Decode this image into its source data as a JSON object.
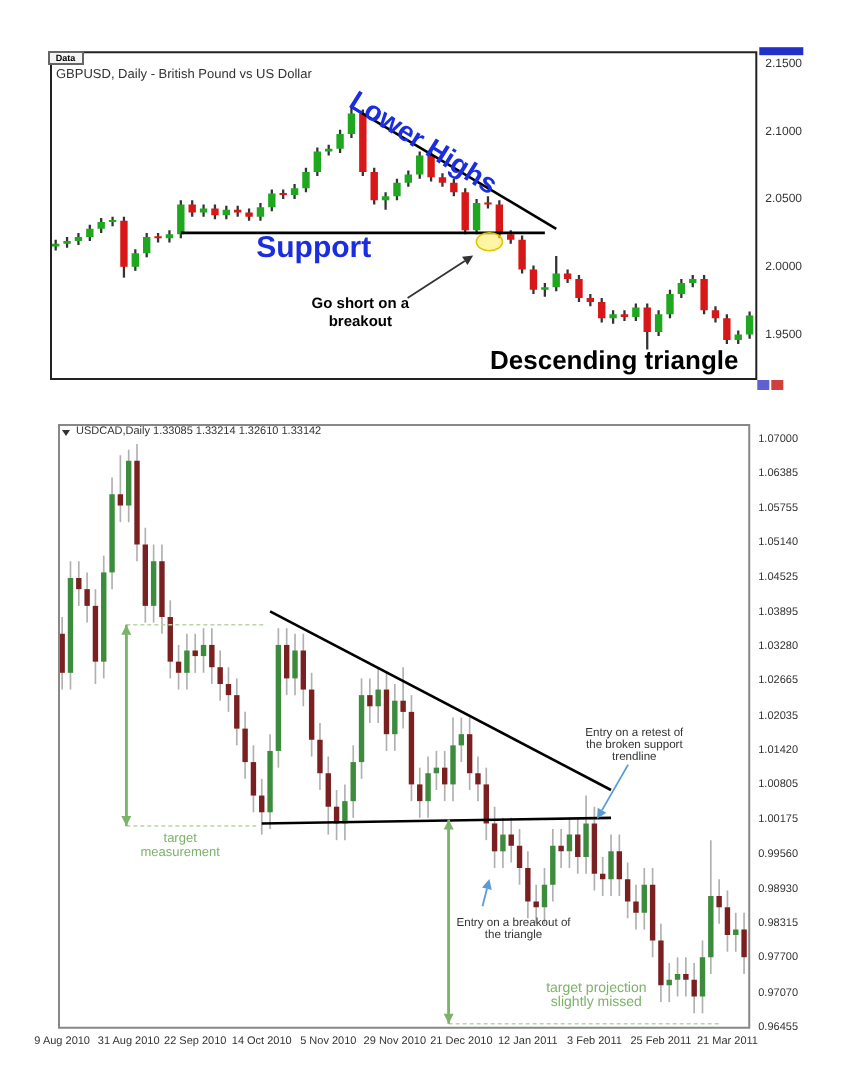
{
  "chart_data": [
    {
      "type": "candlestick",
      "title": "GBPUSD, Daily - British Pound vs US Dollar",
      "categories": [
        null,
        null,
        null,
        null,
        null,
        null,
        null,
        null,
        null,
        null,
        null,
        null,
        null,
        null,
        null,
        null,
        null,
        null,
        null,
        null,
        null,
        null,
        null,
        null,
        null,
        null,
        null,
        null,
        null,
        null,
        null,
        null,
        null,
        null,
        null,
        null,
        null,
        null,
        null,
        null,
        null,
        null,
        null,
        null,
        null,
        null,
        null,
        null,
        null,
        null,
        null,
        null,
        null,
        null,
        null,
        null,
        null,
        null,
        null,
        null,
        null,
        null
      ],
      "ohlc": [
        [
          2.015,
          2.02,
          2.012,
          2.017
        ],
        [
          2.017,
          2.022,
          2.014,
          2.019
        ],
        [
          2.019,
          2.025,
          2.016,
          2.022
        ],
        [
          2.022,
          2.031,
          2.019,
          2.028
        ],
        [
          2.028,
          2.036,
          2.025,
          2.033
        ],
        [
          2.033,
          2.037,
          2.03,
          2.034
        ],
        [
          2.034,
          2.037,
          1.992,
          2.0
        ],
        [
          2.0,
          2.013,
          1.997,
          2.01
        ],
        [
          2.01,
          2.025,
          2.007,
          2.022
        ],
        [
          2.022,
          2.025,
          2.018,
          2.021
        ],
        [
          2.021,
          2.027,
          2.018,
          2.024
        ],
        [
          2.024,
          2.049,
          2.021,
          2.046
        ],
        [
          2.046,
          2.049,
          2.037,
          2.04
        ],
        [
          2.04,
          2.046,
          2.037,
          2.043
        ],
        [
          2.043,
          2.046,
          2.035,
          2.038
        ],
        [
          2.038,
          2.045,
          2.035,
          2.042
        ],
        [
          2.042,
          2.045,
          2.037,
          2.04
        ],
        [
          2.04,
          2.043,
          2.034,
          2.037
        ],
        [
          2.037,
          2.047,
          2.034,
          2.044
        ],
        [
          2.044,
          2.057,
          2.041,
          2.054
        ],
        [
          2.054,
          2.057,
          2.05,
          2.053
        ],
        [
          2.053,
          2.061,
          2.05,
          2.058
        ],
        [
          2.058,
          2.073,
          2.055,
          2.07
        ],
        [
          2.07,
          2.088,
          2.067,
          2.085
        ],
        [
          2.085,
          2.09,
          2.082,
          2.087
        ],
        [
          2.087,
          2.101,
          2.084,
          2.098
        ],
        [
          2.098,
          2.118,
          2.095,
          2.113
        ],
        [
          2.113,
          2.116,
          2.067,
          2.07
        ],
        [
          2.07,
          2.073,
          2.046,
          2.049
        ],
        [
          2.049,
          2.055,
          2.042,
          2.052
        ],
        [
          2.052,
          2.065,
          2.049,
          2.062
        ],
        [
          2.062,
          2.071,
          2.059,
          2.068
        ],
        [
          2.068,
          2.085,
          2.065,
          2.082
        ],
        [
          2.082,
          2.085,
          2.063,
          2.066
        ],
        [
          2.066,
          2.069,
          2.059,
          2.062
        ],
        [
          2.062,
          2.065,
          2.052,
          2.055
        ],
        [
          2.055,
          2.058,
          2.024,
          2.027
        ],
        [
          2.027,
          2.05,
          2.024,
          2.047
        ],
        [
          2.047,
          2.052,
          2.043,
          2.046
        ],
        [
          2.046,
          2.049,
          2.021,
          2.024
        ],
        [
          2.024,
          2.027,
          2.017,
          2.02
        ],
        [
          2.02,
          2.023,
          1.995,
          1.998
        ],
        [
          1.998,
          2.001,
          1.98,
          1.983
        ],
        [
          1.983,
          1.988,
          1.978,
          1.985
        ],
        [
          1.985,
          2.008,
          1.982,
          1.995
        ],
        [
          1.995,
          1.998,
          1.988,
          1.991
        ],
        [
          1.991,
          1.994,
          1.974,
          1.977
        ],
        [
          1.977,
          1.98,
          1.971,
          1.974
        ],
        [
          1.974,
          1.977,
          1.959,
          1.962
        ],
        [
          1.962,
          1.968,
          1.958,
          1.965
        ],
        [
          1.965,
          1.968,
          1.96,
          1.963
        ],
        [
          1.963,
          1.973,
          1.96,
          1.97
        ],
        [
          1.97,
          1.973,
          1.939,
          1.952
        ],
        [
          1.952,
          1.968,
          1.949,
          1.965
        ],
        [
          1.965,
          1.983,
          1.962,
          1.98
        ],
        [
          1.98,
          1.991,
          1.977,
          1.988
        ],
        [
          1.988,
          1.994,
          1.985,
          1.991
        ],
        [
          1.991,
          1.994,
          1.965,
          1.968
        ],
        [
          1.968,
          1.971,
          1.959,
          1.962
        ],
        [
          1.962,
          1.965,
          1.943,
          1.946
        ],
        [
          1.946,
          1.953,
          1.943,
          1.95
        ],
        [
          1.95,
          1.967,
          1.947,
          1.964
        ]
      ],
      "series": [
        {
          "type": "line",
          "color": "#000000",
          "values": [
            null,
            null,
            null,
            null,
            null,
            null,
            null,
            null,
            null,
            null,
            null,
            null,
            null,
            null,
            null,
            null,
            null,
            null,
            null,
            null,
            null,
            null,
            null,
            null,
            null,
            null,
            2.118,
            null,
            null,
            null,
            null,
            null,
            null,
            null,
            null,
            null,
            null,
            null,
            null,
            null,
            null,
            null,
            null,
            null,
            2.028,
            null,
            null,
            null,
            null,
            null,
            null,
            null,
            null,
            null,
            null,
            null,
            null,
            null,
            null,
            null,
            null,
            null
          ]
        },
        {
          "type": "line",
          "color": "#000000",
          "values": [
            null,
            null,
            null,
            null,
            null,
            null,
            null,
            null,
            null,
            null,
            null,
            2.025,
            null,
            null,
            null,
            null,
            null,
            null,
            null,
            null,
            null,
            null,
            null,
            null,
            null,
            null,
            null,
            null,
            null,
            null,
            null,
            null,
            null,
            null,
            null,
            null,
            null,
            null,
            null,
            null,
            null,
            null,
            null,
            2.025,
            null,
            null,
            null,
            null,
            null,
            null,
            null,
            null,
            null,
            null,
            null,
            null,
            null,
            null,
            null,
            null,
            null,
            null
          ]
        }
      ],
      "ylim": [
        1.918,
        2.159
      ],
      "yticks": [
        {
          "value": 1.95,
          "label": "1.9500"
        },
        {
          "value": 2.0,
          "label": "2.0000"
        },
        {
          "value": 2.05,
          "label": "2.0500"
        },
        {
          "value": 2.1,
          "label": "2.1000"
        },
        {
          "value": 2.15,
          "label": "2.1500"
        }
      ],
      "tick_labels": "y",
      "annotations": [
        "Data",
        "Lower Highs",
        "Support",
        "Go short on a breakout",
        "Descending triangle"
      ]
    },
    {
      "type": "candlestick",
      "title": "USDCAD,Daily  1.33085 1.33214 1.32610 1.33142",
      "categories": [
        "9 Aug 2010",
        null,
        null,
        null,
        null,
        null,
        null,
        null,
        "31 Aug 2010",
        null,
        null,
        null,
        null,
        null,
        null,
        null,
        "22 Sep 2010",
        null,
        null,
        null,
        null,
        null,
        null,
        null,
        "14 Oct 2010",
        null,
        null,
        null,
        null,
        null,
        null,
        null,
        "5 Nov 2010",
        null,
        null,
        null,
        null,
        null,
        null,
        null,
        "29 Nov 2010",
        null,
        null,
        null,
        null,
        null,
        null,
        null,
        "21 Dec 2010",
        null,
        null,
        null,
        null,
        null,
        null,
        null,
        "12 Jan 2011",
        null,
        null,
        null,
        null,
        null,
        null,
        null,
        "3 Feb 2011",
        null,
        null,
        null,
        null,
        null,
        null,
        null,
        "25 Feb 2011",
        null,
        null,
        null,
        null,
        null,
        null,
        null,
        "21 Mar 2011",
        null,
        null
      ],
      "ohlc": [
        [
          1.035,
          1.038,
          1.025,
          1.028
        ],
        [
          1.028,
          1.048,
          1.025,
          1.045
        ],
        [
          1.045,
          1.048,
          1.04,
          1.043
        ],
        [
          1.043,
          1.046,
          1.037,
          1.04
        ],
        [
          1.04,
          1.043,
          1.026,
          1.03
        ],
        [
          1.03,
          1.049,
          1.027,
          1.046
        ],
        [
          1.046,
          1.063,
          1.043,
          1.06
        ],
        [
          1.06,
          1.067,
          1.055,
          1.058
        ],
        [
          1.058,
          1.068,
          1.055,
          1.066
        ],
        [
          1.066,
          1.069,
          1.048,
          1.051
        ],
        [
          1.051,
          1.054,
          1.037,
          1.04
        ],
        [
          1.04,
          1.051,
          1.037,
          1.048
        ],
        [
          1.048,
          1.051,
          1.035,
          1.038
        ],
        [
          1.038,
          1.041,
          1.027,
          1.03
        ],
        [
          1.03,
          1.033,
          1.025,
          1.028
        ],
        [
          1.028,
          1.035,
          1.025,
          1.032
        ],
        [
          1.032,
          1.035,
          1.028,
          1.031
        ],
        [
          1.031,
          1.036,
          1.028,
          1.033
        ],
        [
          1.033,
          1.036,
          1.026,
          1.029
        ],
        [
          1.029,
          1.032,
          1.023,
          1.026
        ],
        [
          1.026,
          1.029,
          1.021,
          1.024
        ],
        [
          1.024,
          1.027,
          1.015,
          1.018
        ],
        [
          1.018,
          1.021,
          1.009,
          1.012
        ],
        [
          1.012,
          1.015,
          1.003,
          1.006
        ],
        [
          1.006,
          1.009,
          0.999,
          1.003
        ],
        [
          1.003,
          1.017,
          1.0,
          1.014
        ],
        [
          1.014,
          1.036,
          1.011,
          1.033
        ],
        [
          1.033,
          1.036,
          1.024,
          1.027
        ],
        [
          1.027,
          1.035,
          1.024,
          1.032
        ],
        [
          1.032,
          1.035,
          1.022,
          1.025
        ],
        [
          1.025,
          1.028,
          1.013,
          1.016
        ],
        [
          1.016,
          1.019,
          1.007,
          1.01
        ],
        [
          1.01,
          1.013,
          0.999,
          1.004
        ],
        [
          1.004,
          1.007,
          0.998,
          1.001
        ],
        [
          1.001,
          1.008,
          0.998,
          1.005
        ],
        [
          1.005,
          1.015,
          1.002,
          1.012
        ],
        [
          1.012,
          1.027,
          1.009,
          1.024
        ],
        [
          1.024,
          1.027,
          1.019,
          1.022
        ],
        [
          1.022,
          1.029,
          1.019,
          1.025
        ],
        [
          1.025,
          1.028,
          1.014,
          1.017
        ],
        [
          1.017,
          1.026,
          1.014,
          1.023
        ],
        [
          1.023,
          1.029,
          1.018,
          1.021
        ],
        [
          1.021,
          1.024,
          1.005,
          1.008
        ],
        [
          1.008,
          1.011,
          1.002,
          1.005
        ],
        [
          1.005,
          1.013,
          1.002,
          1.01
        ],
        [
          1.01,
          1.014,
          1.007,
          1.011
        ],
        [
          1.011,
          1.014,
          1.005,
          1.008
        ],
        [
          1.008,
          1.02,
          1.005,
          1.015
        ],
        [
          1.015,
          1.02,
          1.012,
          1.017
        ],
        [
          1.017,
          1.02,
          1.007,
          1.01
        ],
        [
          1.01,
          1.013,
          1.005,
          1.008
        ],
        [
          1.008,
          1.011,
          0.998,
          1.001
        ],
        [
          1.001,
          1.004,
          0.993,
          0.996
        ],
        [
          0.996,
          1.002,
          0.993,
          0.999
        ],
        [
          0.999,
          1.002,
          0.994,
          0.997
        ],
        [
          0.997,
          1.0,
          0.99,
          0.993
        ],
        [
          0.993,
          0.996,
          0.984,
          0.987
        ],
        [
          0.987,
          0.99,
          0.983,
          0.986
        ],
        [
          0.986,
          0.993,
          0.983,
          0.99
        ],
        [
          0.99,
          1.0,
          0.987,
          0.997
        ],
        [
          0.997,
          1.0,
          0.993,
          0.996
        ],
        [
          0.996,
          1.002,
          0.993,
          0.999
        ],
        [
          0.999,
          1.002,
          0.992,
          0.995
        ],
        [
          0.995,
          1.006,
          0.992,
          1.001
        ],
        [
          1.001,
          1.004,
          0.989,
          0.992
        ],
        [
          0.992,
          0.995,
          0.988,
          0.991
        ],
        [
          0.991,
          0.999,
          0.988,
          0.996
        ],
        [
          0.996,
          0.999,
          0.988,
          0.991
        ],
        [
          0.991,
          0.994,
          0.984,
          0.987
        ],
        [
          0.987,
          0.99,
          0.982,
          0.985
        ],
        [
          0.985,
          0.993,
          0.982,
          0.99
        ],
        [
          0.99,
          0.993,
          0.977,
          0.98
        ],
        [
          0.98,
          0.983,
          0.969,
          0.972
        ],
        [
          0.972,
          0.976,
          0.969,
          0.973
        ],
        [
          0.973,
          0.977,
          0.97,
          0.974
        ],
        [
          0.974,
          0.977,
          0.97,
          0.973
        ],
        [
          0.973,
          0.976,
          0.967,
          0.97
        ],
        [
          0.97,
          0.98,
          0.967,
          0.977
        ],
        [
          0.977,
          0.998,
          0.974,
          0.988
        ],
        [
          0.988,
          0.991,
          0.983,
          0.986
        ],
        [
          0.986,
          0.989,
          0.978,
          0.981
        ],
        [
          0.981,
          0.985,
          0.978,
          0.982
        ],
        [
          0.982,
          0.985,
          0.974,
          0.977
        ]
      ],
      "series": [
        {
          "type": "line",
          "color": "#000000",
          "values": [
            null,
            null,
            null,
            null,
            null,
            null,
            null,
            null,
            null,
            null,
            null,
            null,
            null,
            null,
            null,
            null,
            null,
            null,
            null,
            null,
            null,
            null,
            null,
            null,
            null,
            1.039,
            null,
            null,
            null,
            null,
            null,
            null,
            null,
            null,
            null,
            null,
            null,
            null,
            null,
            null,
            null,
            null,
            null,
            null,
            null,
            null,
            null,
            null,
            null,
            null,
            null,
            null,
            null,
            null,
            null,
            null,
            null,
            null,
            null,
            null,
            null,
            null,
            null,
            null,
            null,
            null,
            1.007,
            null,
            null,
            null,
            null,
            null,
            null,
            null,
            null,
            null,
            null,
            null,
            null,
            null,
            null,
            null,
            null
          ]
        },
        {
          "type": "line",
          "color": "#000000",
          "values": [
            null,
            null,
            null,
            null,
            null,
            null,
            null,
            null,
            null,
            null,
            null,
            null,
            null,
            null,
            null,
            null,
            null,
            null,
            null,
            null,
            null,
            null,
            null,
            null,
            1.001,
            null,
            null,
            null,
            null,
            null,
            null,
            null,
            null,
            null,
            null,
            null,
            null,
            null,
            null,
            null,
            null,
            null,
            null,
            null,
            null,
            null,
            null,
            null,
            null,
            null,
            null,
            null,
            null,
            null,
            null,
            null,
            null,
            null,
            null,
            null,
            null,
            null,
            null,
            null,
            null,
            null,
            1.002,
            null,
            null,
            null,
            null,
            null,
            null,
            null,
            null,
            null,
            null,
            null,
            null,
            null,
            null,
            null,
            null
          ]
        }
      ],
      "ylim": [
        0.96455,
        1.0726
      ],
      "yticks": [
        {
          "value": 0.96455,
          "label": "0.96455"
        },
        {
          "value": 0.9707,
          "label": "0.97070"
        },
        {
          "value": 0.977,
          "label": "0.97700"
        },
        {
          "value": 0.98315,
          "label": "0.98315"
        },
        {
          "value": 0.9893,
          "label": "0.98930"
        },
        {
          "value": 0.9956,
          "label": "0.99560"
        },
        {
          "value": 1.00175,
          "label": "1.00175"
        },
        {
          "value": 1.00805,
          "label": "1.00805"
        },
        {
          "value": 1.0142,
          "label": "1.01420"
        },
        {
          "value": 1.02035,
          "label": "1.02035"
        },
        {
          "value": 1.02665,
          "label": "1.02665"
        },
        {
          "value": 1.0328,
          "label": "1.03280"
        },
        {
          "value": 1.03895,
          "label": "1.03895"
        },
        {
          "value": 1.04525,
          "label": "1.04525"
        },
        {
          "value": 1.0514,
          "label": "1.05140"
        },
        {
          "value": 1.05755,
          "label": "1.05755"
        },
        {
          "value": 1.06385,
          "label": "1.06385"
        },
        {
          "value": 1.07,
          "label": "1.07000"
        }
      ],
      "annotations": [
        "target measurement",
        "Entry on a retest of the broken support trendline",
        "Entry on a breakout of the triangle",
        "target projection slightly missed"
      ]
    }
  ]
}
